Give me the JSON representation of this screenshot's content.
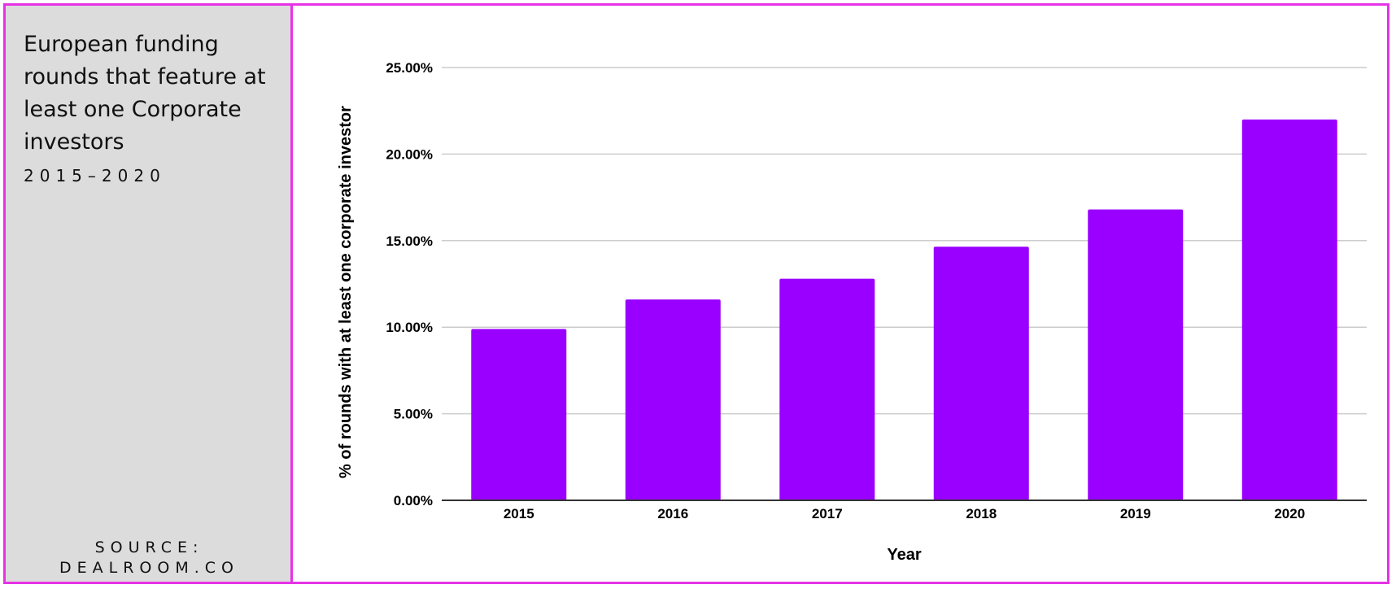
{
  "sidebar": {
    "title": "European funding rounds that feature at least one Corporate investors",
    "subtitle": "2015–2020",
    "source_line1": "SOURCE:",
    "source_line2": "DEALROOM.CO"
  },
  "colors": {
    "bar": "#9900ff",
    "border": "#e633e6",
    "sidebar_bg": "#dcdcdc",
    "grid": "#cccccc"
  },
  "chart_data": {
    "type": "bar",
    "categories": [
      "2015",
      "2016",
      "2017",
      "2018",
      "2019",
      "2020"
    ],
    "values": [
      9.9,
      11.6,
      12.8,
      14.65,
      16.8,
      22.0
    ],
    "ylim": [
      0,
      25
    ],
    "yticks": [
      0,
      5,
      10,
      15,
      20,
      25
    ],
    "ytick_labels": [
      "0.00%",
      "5.00%",
      "10.00%",
      "15.00%",
      "20.00%",
      "25.00%"
    ],
    "xlabel": "Year",
    "ylabel": "% of rounds with at least one corporate investor",
    "grid": true,
    "legend": "none"
  }
}
